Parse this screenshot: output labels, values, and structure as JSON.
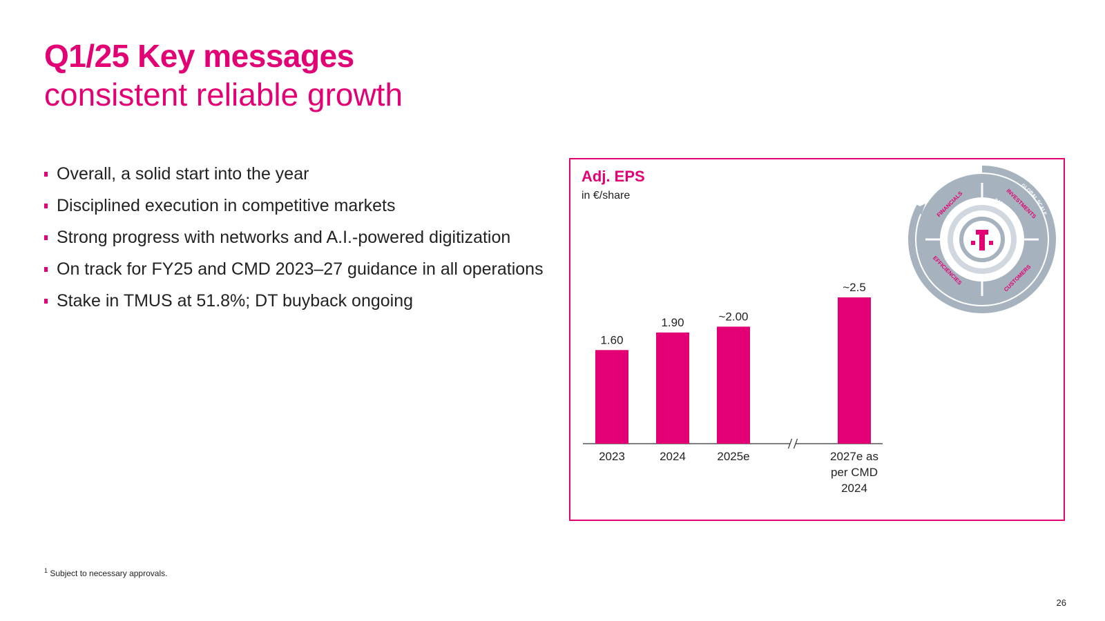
{
  "slide": {
    "title": "Q1/25 Key messages",
    "subtitle": "consistent reliable growth",
    "bullets": [
      "Overall, a solid start into the year",
      "Disciplined execution in competitive markets",
      "Strong progress with networks and A.I.-powered digitization",
      "On track for FY25 and CMD 2023–27 guidance in all operations",
      "Stake in TMUS at 51.8%; DT buyback ongoing"
    ],
    "footnote_marker": "1",
    "footnote_text": "Subject to necessary approvals.",
    "page_number": "26"
  },
  "colors": {
    "magenta": "#e20074",
    "ring_gray": "#a6b2be",
    "ring_light": "#d0d7de"
  },
  "logo_wheel": {
    "segments": [
      "FINANCIALS",
      "INVESTMENTS",
      "CUSTOMERS",
      "EFFICIENCIES"
    ],
    "outer_label": "GLOBAL SCALE",
    "inner_label": "DATA & AI",
    "center_glyph": "T"
  },
  "chart_data": {
    "type": "bar",
    "title": "Adj. EPS",
    "unit": "in €/share",
    "categories": [
      "2023",
      "2024",
      "2025e",
      "2027e as per CMD 2024"
    ],
    "category_lines": [
      [
        "2023"
      ],
      [
        "2024"
      ],
      [
        "2025e"
      ],
      [
        "2027e as",
        "per CMD",
        "2024"
      ]
    ],
    "values": [
      1.6,
      1.9,
      2.0,
      2.5
    ],
    "value_labels": [
      "1.60",
      "1.90",
      "~2.00",
      "~2.5"
    ],
    "axis_break_before_index": 3,
    "ylim": [
      0,
      2.5
    ],
    "grid": false,
    "bar_color": "#e20074"
  }
}
